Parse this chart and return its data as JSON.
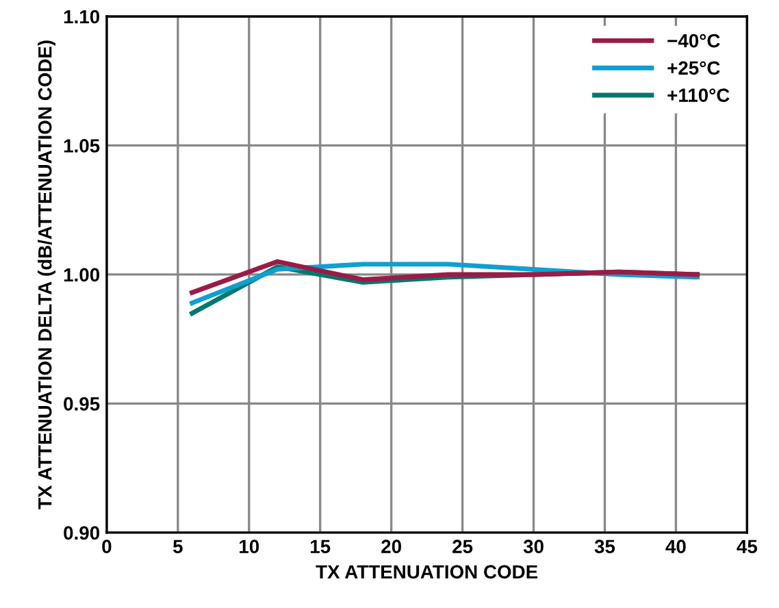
{
  "chart_data": {
    "type": "line",
    "xlabel": "TX ATTENUATION CODE",
    "ylabel": "TX ATTENUATION DELTA (dB/ATTENUATION CODE)",
    "xlim": [
      0,
      45
    ],
    "xticks": [
      0,
      5,
      10,
      15,
      20,
      25,
      30,
      35,
      40,
      45
    ],
    "ylim": [
      0.9,
      1.1
    ],
    "yticks": [
      {
        "value": 0.9,
        "label": "0.90"
      },
      {
        "value": 0.95,
        "label": "0.95"
      },
      {
        "value": 1.0,
        "label": "1.00"
      },
      {
        "value": 1.05,
        "label": "1.05"
      },
      {
        "value": 1.1,
        "label": "1.10"
      }
    ],
    "grid": true,
    "legend": "top right",
    "x": [
      6,
      12,
      18,
      24,
      30,
      36,
      41.5
    ],
    "series": [
      {
        "name": "−40°C",
        "color": "#9b1b47",
        "values": [
          0.993,
          1.005,
          0.998,
          1.0,
          1.0,
          1.001,
          1.0
        ]
      },
      {
        "name": "+25°C",
        "color": "#0fa0d2",
        "values": [
          0.989,
          1.002,
          1.004,
          1.004,
          1.002,
          1.0,
          0.999
        ]
      },
      {
        "name": "+110°C",
        "color": "#00786e",
        "values": [
          0.985,
          1.003,
          0.997,
          0.999,
          1.0,
          1.001,
          1.0
        ]
      }
    ]
  }
}
